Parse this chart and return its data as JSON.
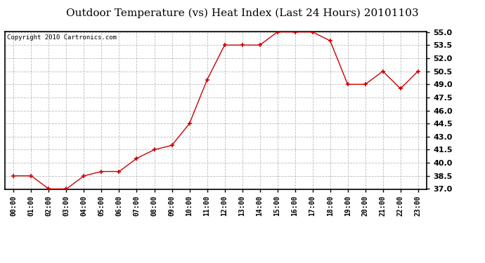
{
  "title": "Outdoor Temperature (vs) Heat Index (Last 24 Hours) 20101103",
  "copyright": "Copyright 2010 Cartronics.com",
  "x_labels": [
    "00:00",
    "01:00",
    "02:00",
    "03:00",
    "04:00",
    "05:00",
    "06:00",
    "07:00",
    "08:00",
    "09:00",
    "10:00",
    "11:00",
    "12:00",
    "13:00",
    "14:00",
    "15:00",
    "16:00",
    "17:00",
    "18:00",
    "19:00",
    "20:00",
    "21:00",
    "22:00",
    "23:00"
  ],
  "y_values": [
    38.5,
    38.5,
    37.0,
    37.0,
    38.5,
    39.0,
    39.0,
    40.5,
    41.5,
    42.0,
    44.5,
    49.5,
    53.5,
    53.5,
    53.5,
    55.0,
    55.0,
    55.0,
    54.0,
    49.0,
    49.0,
    50.5,
    48.5,
    50.5
  ],
  "line_color": "#cc0000",
  "marker": "+",
  "marker_size": 5,
  "marker_color": "#cc0000",
  "ylim": [
    37.0,
    55.0
  ],
  "yticks": [
    37.0,
    38.5,
    40.0,
    41.5,
    43.0,
    44.5,
    46.0,
    47.5,
    49.0,
    50.5,
    52.0,
    53.5,
    55.0
  ],
  "background_color": "#ffffff",
  "plot_bg_color": "#ffffff",
  "grid_color": "#bbbbbb",
  "title_fontsize": 11,
  "copyright_fontsize": 6.5,
  "tick_fontsize": 7,
  "ytick_fontsize": 8
}
